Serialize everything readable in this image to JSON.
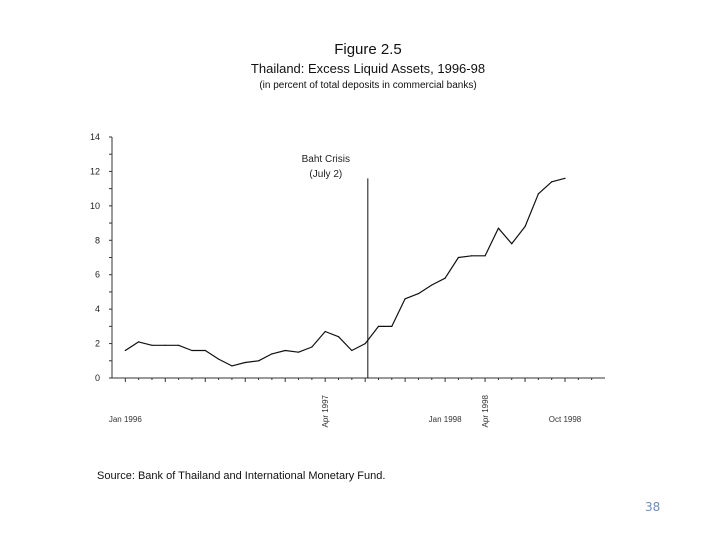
{
  "figure": {
    "number": "Figure 2.5",
    "title": "Thailand: Excess Liquid Assets, 1996-98",
    "subtitle": "(in percent of total deposits in commercial banks)",
    "source": "Source: Bank of Thailand and International Monetary Fund.",
    "page_number": "38"
  },
  "chart_data": {
    "type": "line",
    "title": "Thailand: Excess Liquid Assets, 1996-98",
    "xlabel": "",
    "ylabel": "",
    "ylim": [
      0,
      14
    ],
    "yticks": [
      0,
      2,
      4,
      6,
      8,
      10,
      12,
      14
    ],
    "ytick_labels": [
      "0",
      "2",
      "4",
      "6",
      "8",
      "10",
      "12",
      "14"
    ],
    "x_tick_labels": [
      {
        "label": "Jan 1996",
        "month": 1,
        "rotated": false
      },
      {
        "label": "Apr 1997",
        "month": 16,
        "rotated": true
      },
      {
        "label": "Jan 1998",
        "month": 25,
        "rotated": false
      },
      {
        "label": "Apr 1998",
        "month": 28,
        "rotated": true
      },
      {
        "label": "Oct 1998",
        "month": 34,
        "rotated": false
      }
    ],
    "series": [
      {
        "name": "Excess liquid assets",
        "x": [
          1,
          2,
          3,
          4,
          5,
          6,
          7,
          8,
          9,
          10,
          11,
          12,
          13,
          14,
          15,
          16,
          17,
          18,
          19,
          20,
          21,
          22,
          23,
          24,
          25,
          26,
          27,
          28,
          29,
          30,
          31,
          32,
          33,
          34,
          35,
          36
        ],
        "values": [
          1.6,
          2.1,
          1.9,
          1.9,
          1.9,
          1.6,
          1.6,
          1.1,
          0.7,
          0.9,
          1.0,
          1.4,
          1.6,
          1.5,
          1.8,
          2.7,
          2.4,
          1.6,
          2.0,
          3.0,
          3.0,
          4.6,
          4.9,
          5.4,
          5.8,
          7.0,
          7.1,
          7.1,
          8.7,
          7.8,
          8.8,
          10.7,
          11.4,
          11.6,
          null,
          null
        ]
      }
    ],
    "annotations": [
      {
        "text": "Baht Crisis",
        "x": 19.2
      },
      {
        "text": "(July 2)",
        "x": 19.2
      }
    ],
    "event_line_x": 19.2,
    "grid": false,
    "legend": "none"
  }
}
